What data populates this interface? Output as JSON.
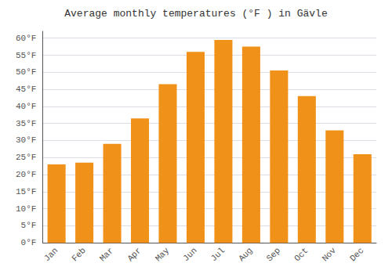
{
  "chart_data": {
    "type": "bar",
    "title": "Average monthly temperatures (°F ) in Gävle",
    "categories": [
      "Jan",
      "Feb",
      "Mar",
      "Apr",
      "May",
      "Jun",
      "Jul",
      "Aug",
      "Sep",
      "Oct",
      "Nov",
      "Dec"
    ],
    "values": [
      23,
      23.5,
      29,
      36.5,
      46.5,
      56,
      59.5,
      57.5,
      50.5,
      43,
      33,
      26
    ],
    "color": "#F0921A",
    "ylim": [
      0,
      62
    ],
    "yticks": [
      {
        "value": 0,
        "label": "0°F"
      },
      {
        "value": 5,
        "label": "5°F"
      },
      {
        "value": 10,
        "label": "10°F"
      },
      {
        "value": 15,
        "label": "15°F"
      },
      {
        "value": 20,
        "label": "20°F"
      },
      {
        "value": 25,
        "label": "25°F"
      },
      {
        "value": 30,
        "label": "30°F"
      },
      {
        "value": 35,
        "label": "35°F"
      },
      {
        "value": 40,
        "label": "40°F"
      },
      {
        "value": 45,
        "label": "45°F"
      },
      {
        "value": 50,
        "label": "50°F"
      },
      {
        "value": 55,
        "label": "55°F"
      },
      {
        "value": 60,
        "label": "60°F"
      }
    ],
    "grid": true
  }
}
